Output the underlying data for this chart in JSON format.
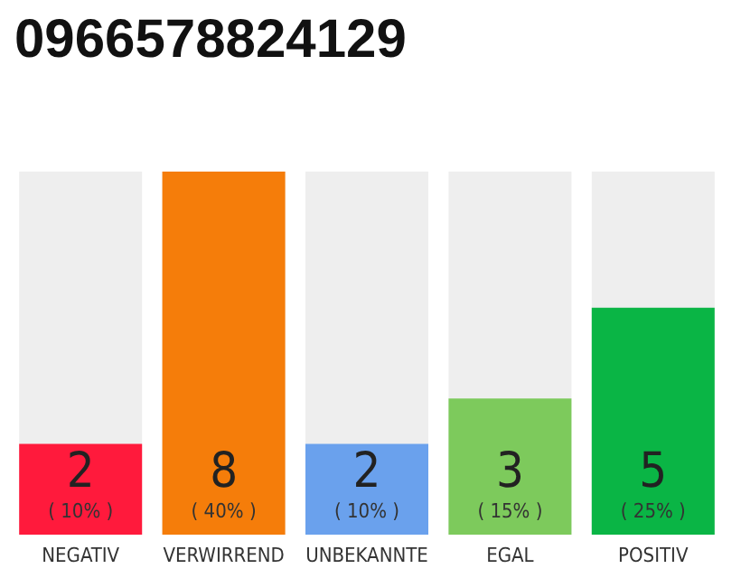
{
  "chart_data": {
    "type": "bar",
    "title": "0966578824129",
    "categories": [
      "NEGATIV",
      "VERWIRREND",
      "UNBEKANNTE",
      "EGAL",
      "POSITIV"
    ],
    "values": [
      2,
      8,
      2,
      3,
      5
    ],
    "colors": [
      "#ff1a3c",
      "#f57d0a",
      "#6aa1ed",
      "#7dca5c",
      "#0ab545"
    ],
    "value_labels": [
      "2\n( 10% )",
      "8\n( 40% )",
      "2\n( 10% )",
      "3\n( 15% )",
      "5\n( 25% )"
    ],
    "ylim": [
      0,
      8
    ],
    "tick_labels": "x"
  }
}
